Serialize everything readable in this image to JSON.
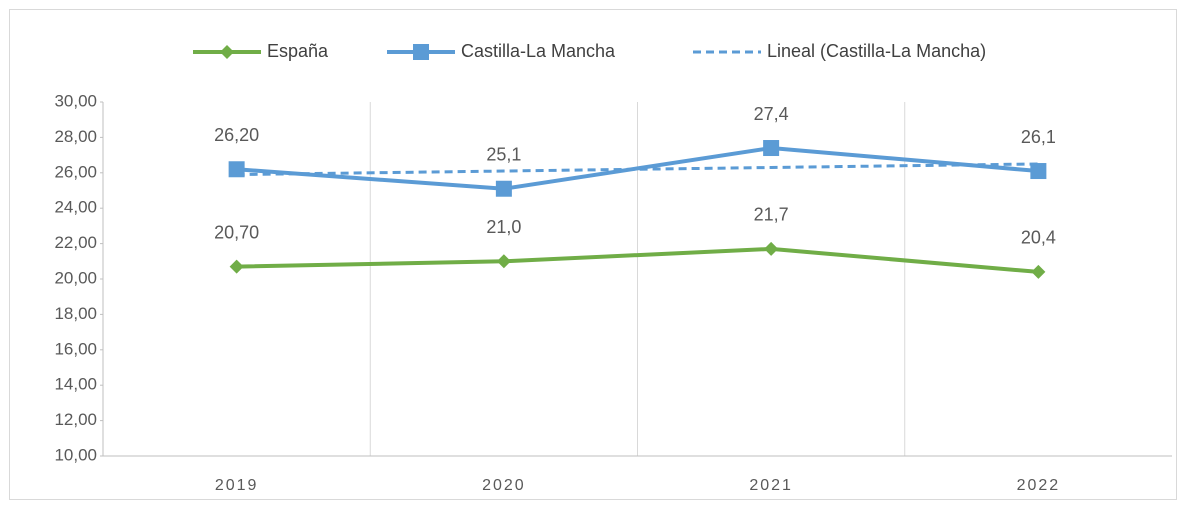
{
  "chart_data": {
    "type": "line",
    "categories": [
      "2019",
      "2020",
      "2021",
      "2022"
    ],
    "series": [
      {
        "name": "España",
        "color": "#70ad47",
        "marker": "diamond",
        "line_style": "solid",
        "values": [
          20.7,
          21.0,
          21.7,
          20.4
        ],
        "value_labels": [
          "20,70",
          "21,0",
          "21,7",
          "20,4"
        ]
      },
      {
        "name": "Castilla-La Mancha",
        "color": "#5b9bd5",
        "marker": "square",
        "line_style": "solid",
        "values": [
          26.2,
          25.1,
          27.4,
          26.1
        ],
        "value_labels": [
          "26,20",
          "25,1",
          "27,4",
          "26,1"
        ]
      },
      {
        "name": "Lineal (Castilla-La Mancha)",
        "color": "#5b9bd5",
        "marker": null,
        "line_style": "dashed",
        "values": [
          25.9,
          26.1,
          26.3,
          26.5
        ]
      }
    ],
    "ylim": [
      10,
      30
    ],
    "yticks": [
      {
        "value": 10,
        "label": "10,00"
      },
      {
        "value": 12,
        "label": "12,00"
      },
      {
        "value": 14,
        "label": "14,00"
      },
      {
        "value": 16,
        "label": "16,00"
      },
      {
        "value": 18,
        "label": "18,00"
      },
      {
        "value": 20,
        "label": "20,00"
      },
      {
        "value": 22,
        "label": "22,00"
      },
      {
        "value": 24,
        "label": "24,00"
      },
      {
        "value": 26,
        "label": "26,00"
      },
      {
        "value": 28,
        "label": "28,00"
      },
      {
        "value": 30,
        "label": "30,00"
      }
    ],
    "grid": "vertical",
    "legend": "top"
  }
}
